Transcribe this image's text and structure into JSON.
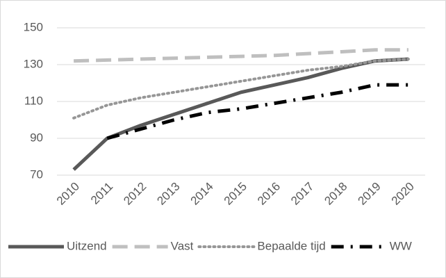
{
  "chart_data": {
    "type": "line",
    "categories": [
      "2010",
      "2011",
      "2012",
      "2013",
      "2014",
      "2015",
      "2016",
      "2017",
      "2018",
      "2019",
      "2020"
    ],
    "series": [
      {
        "name": "Uitzend",
        "color": "#595959",
        "style": "solid",
        "values": [
          73,
          90,
          97,
          103,
          109,
          115,
          119,
          123,
          128,
          132,
          133
        ]
      },
      {
        "name": "Vast",
        "color": "#bfbfbf",
        "style": "dashed",
        "values": [
          132,
          132.5,
          133,
          133.5,
          134,
          134.5,
          135,
          136,
          137,
          138,
          138
        ]
      },
      {
        "name": "Bepaalde tijd",
        "color": "#969696",
        "style": "dotted",
        "values": [
          101,
          108,
          112,
          115,
          118,
          121,
          124,
          127,
          129,
          132,
          133
        ]
      },
      {
        "name": "WW",
        "color": "#000000",
        "style": "dashdot",
        "values": [
          null,
          90,
          95,
          100,
          104,
          106,
          109,
          112,
          115,
          119,
          119
        ]
      }
    ],
    "ylim": [
      70,
      150
    ],
    "yticks": [
      70,
      90,
      110,
      130,
      150
    ],
    "grid": true,
    "legend": "bottom"
  }
}
